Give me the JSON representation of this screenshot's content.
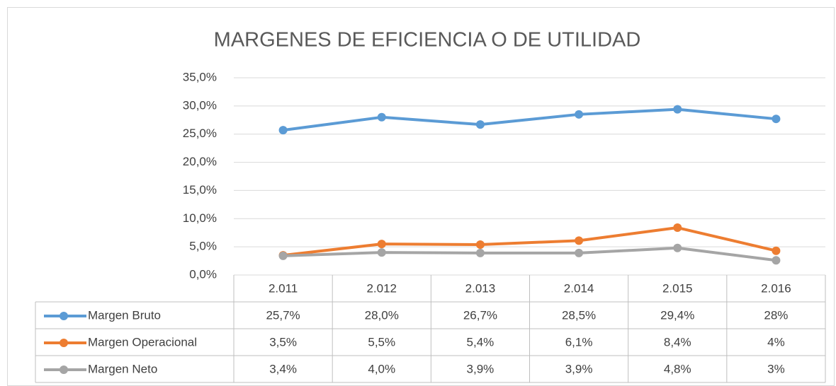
{
  "chart_data": {
    "type": "line",
    "title": "MARGENES DE EFICIENCIA O DE UTILIDAD",
    "categories": [
      "2.011",
      "2.012",
      "2.013",
      "2.014",
      "2.015",
      "2.016"
    ],
    "series": [
      {
        "name": "Margen Bruto",
        "color": "#5b9bd5",
        "values": [
          25.7,
          28.0,
          26.7,
          28.5,
          29.4,
          27.7
        ],
        "value_labels": [
          "25,7%",
          "28,0%",
          "26,7%",
          "28,5%",
          "29,4%",
          "28%"
        ]
      },
      {
        "name": "Margen Operacional",
        "color": "#ed7d31",
        "values": [
          3.5,
          5.5,
          5.4,
          6.1,
          8.4,
          4.3
        ],
        "value_labels": [
          "3,5%",
          "5,5%",
          "5,4%",
          "6,1%",
          "8,4%",
          "4%"
        ]
      },
      {
        "name": "Margen Neto",
        "color": "#a5a5a5",
        "values": [
          3.4,
          4.0,
          3.9,
          3.9,
          4.8,
          2.6
        ],
        "value_labels": [
          "3,4%",
          "4,0%",
          "3,9%",
          "3,9%",
          "4,8%",
          "3%"
        ]
      }
    ],
    "ylim": [
      0,
      35
    ],
    "yticks": [
      {
        "value": 0,
        "label": "0,0%"
      },
      {
        "value": 5,
        "label": "5,0%"
      },
      {
        "value": 10,
        "label": "10,0%"
      },
      {
        "value": 15,
        "label": "15,0%"
      },
      {
        "value": 20,
        "label": "20,0%"
      },
      {
        "value": 25,
        "label": "25,0%"
      },
      {
        "value": 30,
        "label": "30,0%"
      },
      {
        "value": 35,
        "label": "35,0%"
      }
    ],
    "grid": true
  }
}
